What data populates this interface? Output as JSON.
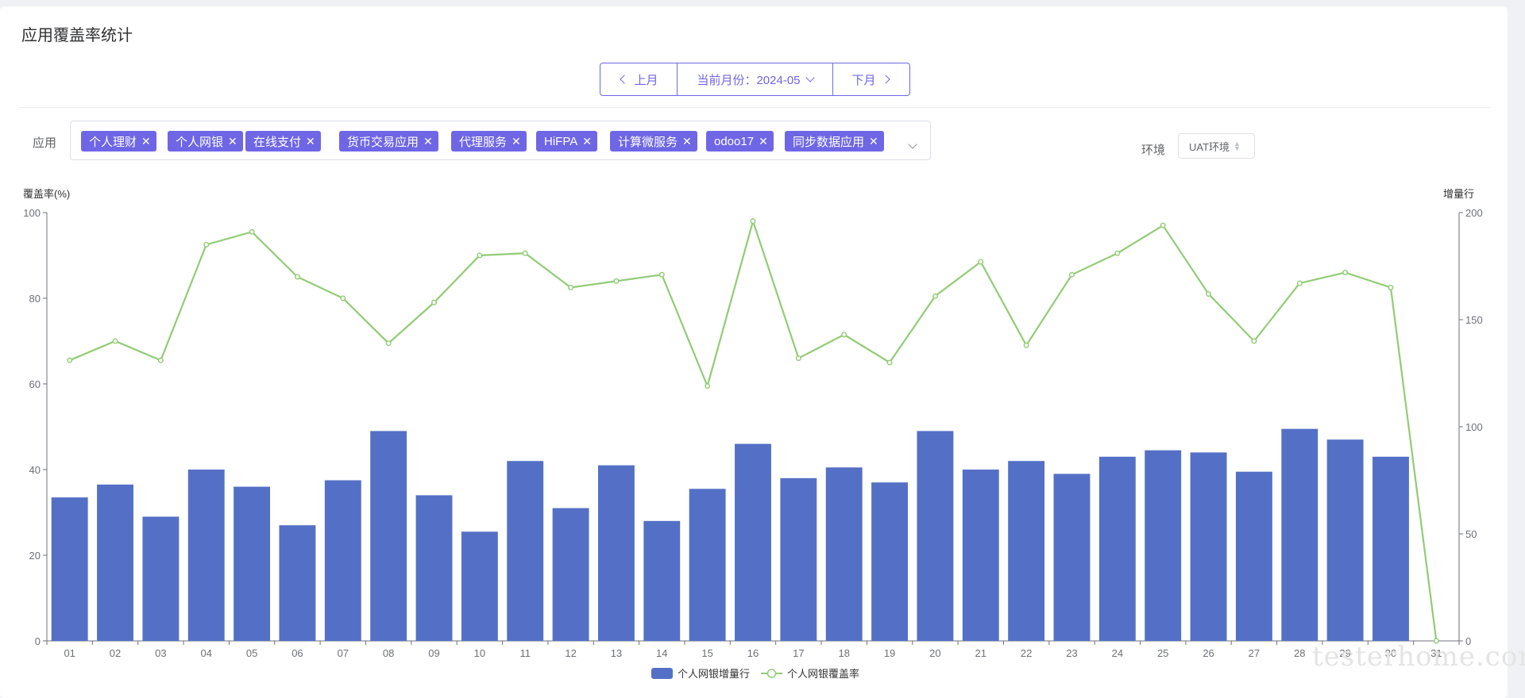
{
  "page": {
    "title": "应用覆盖率统计"
  },
  "month_nav": {
    "prev_label": "上月",
    "current_label": "当前月份：2024-05",
    "next_label": "下月"
  },
  "filters": {
    "app_label": "应用",
    "apps": [
      "个人理财",
      "个人网银",
      "在线支付",
      "货币交易应用",
      "代理服务",
      "HiFPA",
      "计算微服务",
      "odoo17",
      "同步数据应用"
    ],
    "env_label": "环境",
    "env_value": "UAT环境"
  },
  "colors": {
    "accent": "#6f66e6",
    "bar": "#5470c6",
    "line": "#91cc75"
  },
  "chart_data": {
    "type": "bar",
    "categories": [
      "01",
      "02",
      "03",
      "04",
      "05",
      "06",
      "07",
      "08",
      "09",
      "10",
      "11",
      "12",
      "13",
      "14",
      "15",
      "16",
      "17",
      "18",
      "19",
      "20",
      "21",
      "22",
      "23",
      "24",
      "25",
      "26",
      "27",
      "28",
      "29",
      "30",
      "31"
    ],
    "series": [
      {
        "name": "个人网银增量行",
        "type": "bar",
        "yAxis": "right",
        "values": [
          67,
          73,
          58,
          80,
          72,
          54,
          75,
          98,
          68,
          51,
          84,
          62,
          82,
          56,
          71,
          92,
          76,
          81,
          74,
          98,
          80,
          84,
          78,
          86,
          89,
          88,
          79,
          99,
          94,
          86,
          0
        ]
      },
      {
        "name": "个人网银覆盖率",
        "type": "line",
        "yAxis": "left",
        "values": [
          65.5,
          70,
          65.5,
          92.5,
          95.5,
          85,
          80,
          69.5,
          79,
          90,
          90.5,
          82.5,
          84,
          85.5,
          59.5,
          98,
          66,
          71.5,
          65,
          80.5,
          88.5,
          69,
          85.5,
          90.5,
          97,
          81,
          70,
          83.5,
          86,
          82.5,
          0
        ]
      }
    ],
    "ylabel": "覆盖率(%)",
    "y2label": "增量行",
    "ylim": [
      0,
      100
    ],
    "y2lim": [
      0,
      200
    ],
    "yticks": [
      0,
      20,
      40,
      60,
      80,
      100
    ],
    "y2ticks": [
      0,
      50,
      100,
      150,
      200
    ],
    "legend_position": "bottom-center",
    "grid": false
  },
  "watermark": "testerhome.com"
}
